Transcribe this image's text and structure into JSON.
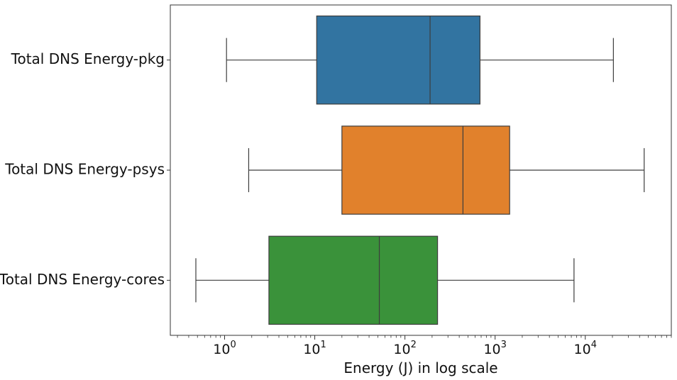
{
  "chart_data": {
    "type": "box",
    "orientation": "horizontal",
    "xscale": "log",
    "xlabel": "Energy (J) in log scale",
    "xlim": [
      0.25,
      90000
    ],
    "xticks": [
      {
        "base": "10",
        "exp": "0"
      },
      {
        "base": "10",
        "exp": "1"
      },
      {
        "base": "10",
        "exp": "2"
      },
      {
        "base": "10",
        "exp": "3"
      },
      {
        "base": "10",
        "exp": "4"
      }
    ],
    "categories": [
      "Total DNS Energy-pkg",
      "Total DNS Energy-psys",
      "Total DNS Energy-cores"
    ],
    "boxes": [
      {
        "label": "Total DNS Energy-pkg",
        "whisker_low": 1.05,
        "q1": 10.5,
        "median": 190,
        "q3": 680,
        "whisker_high": 20500,
        "color": "#3274a1"
      },
      {
        "label": "Total DNS Energy-psys",
        "whisker_low": 1.85,
        "q1": 20,
        "median": 440,
        "q3": 1450,
        "whisker_high": 45000,
        "color": "#e1812c"
      },
      {
        "label": "Total DNS Energy-cores",
        "whisker_low": 0.48,
        "q1": 3.1,
        "median": 52,
        "q3": 230,
        "whisker_high": 7500,
        "color": "#3a923a"
      }
    ],
    "grid": false,
    "legend": false
  }
}
